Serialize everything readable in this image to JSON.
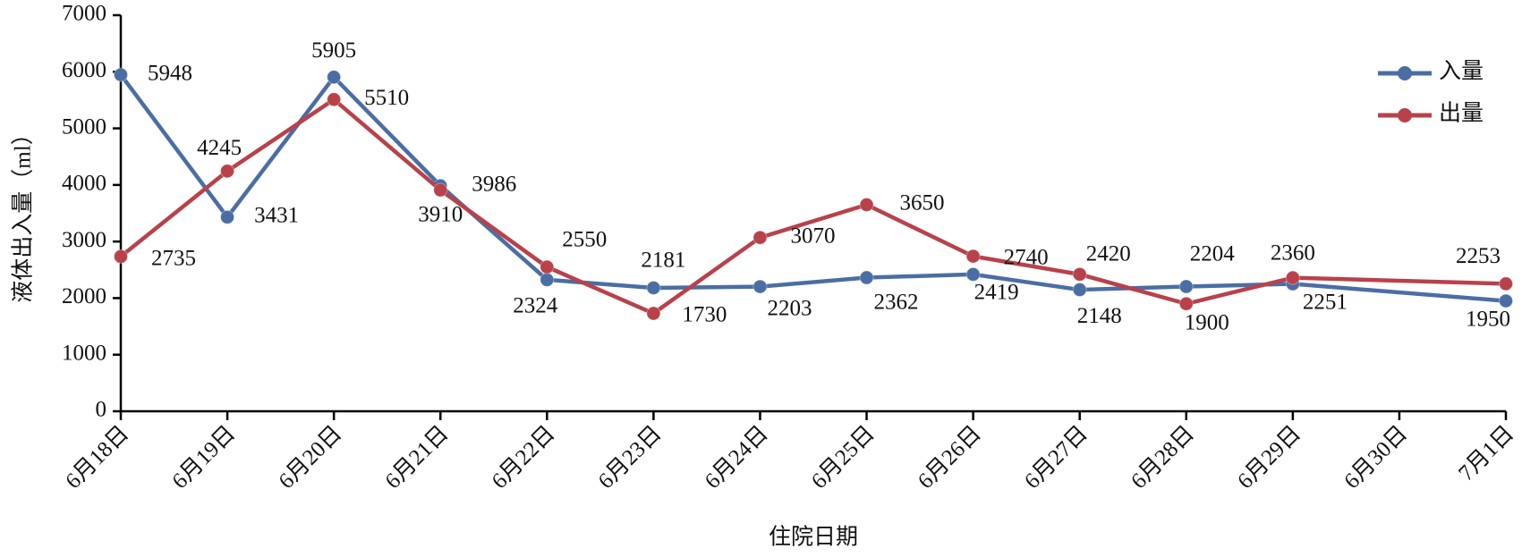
{
  "chart_data": {
    "type": "line",
    "x_label": "住院日期",
    "y_label": "液体出入量（ml）",
    "categories": [
      "6月18日",
      "6月19日",
      "6月20日",
      "6月21日",
      "6月22日",
      "6月23日",
      "6月24日",
      "6月25日",
      "6月26日",
      "6月27日",
      "6月28日",
      "6月29日",
      "6月30日",
      "7月1日"
    ],
    "series": [
      {
        "name": "入量",
        "color": "#4a6ea4",
        "values": [
          5948,
          3431,
          5905,
          3986,
          2324,
          2181,
          2203,
          2362,
          2419,
          2148,
          2204,
          2251,
          null,
          1950
        ]
      },
      {
        "name": "出量",
        "color": "#b9414a",
        "values": [
          2735,
          4245,
          5510,
          3910,
          2550,
          1730,
          3070,
          3650,
          2740,
          2420,
          1900,
          2360,
          null,
          2253
        ]
      }
    ],
    "ylim": [
      0,
      7000
    ],
    "yticks": [
      0,
      1000,
      2000,
      3000,
      4000,
      5000,
      6000,
      7000
    ],
    "legend": "upper right",
    "connect_gaps": true
  }
}
